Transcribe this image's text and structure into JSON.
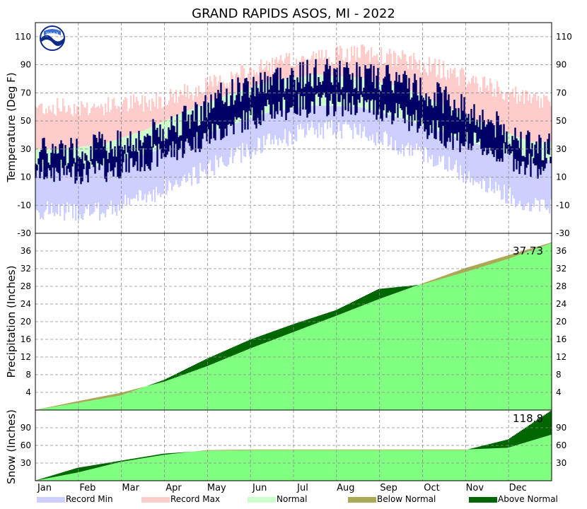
{
  "chart_data": {
    "type": "area",
    "title": "GRAND RAPIDS ASOS, MI - 2022",
    "months": [
      "Jan",
      "Feb",
      "Mar",
      "Apr",
      "May",
      "Jun",
      "Jul",
      "Aug",
      "Sep",
      "Oct",
      "Nov",
      "Dec"
    ],
    "panels": {
      "temperature": {
        "ylabel": "Temperature (Deg F)",
        "ylim": [
          -30,
          120
        ],
        "ticks": [
          -30,
          -10,
          10,
          30,
          50,
          70,
          90,
          110
        ],
        "series": {
          "record_max": [
            60,
            60,
            63,
            70,
            80,
            90,
            95,
            98,
            94,
            86,
            74,
            64
          ],
          "record_min": [
            -14,
            -15,
            -4,
            8,
            24,
            36,
            44,
            44,
            32,
            20,
            4,
            -10
          ],
          "normal_high": [
            30,
            33,
            43,
            57,
            69,
            79,
            83,
            81,
            74,
            61,
            47,
            35
          ],
          "normal_low": [
            17,
            18,
            26,
            36,
            47,
            57,
            61,
            60,
            52,
            41,
            31,
            22
          ],
          "observed_high": [
            28,
            32,
            38,
            52,
            70,
            80,
            84,
            82,
            78,
            66,
            50,
            32
          ],
          "observed_low": [
            14,
            14,
            22,
            32,
            46,
            58,
            62,
            62,
            54,
            40,
            30,
            18
          ]
        },
        "grid": true
      },
      "precipitation": {
        "ylabel": "Precipitation (Inches)",
        "ylim": [
          0,
          40
        ],
        "ticks": [
          4,
          8,
          12,
          16,
          20,
          24,
          28,
          32,
          36
        ],
        "normal_cum": [
          0,
          2.0,
          3.9,
          6.4,
          9.9,
          13.9,
          17.6,
          21.3,
          25.1,
          28.6,
          32.1,
          35.0,
          37.9
        ],
        "observed_cum": [
          0,
          1.6,
          3.3,
          6.8,
          11.6,
          15.9,
          19.4,
          22.6,
          27.4,
          28.4,
          31.2,
          34.2,
          37.73
        ],
        "total_label": "37.73",
        "grid": true
      },
      "snow": {
        "ylabel": "Snow (Inches)",
        "ylim": [
          0,
          120
        ],
        "ticks": [
          30,
          60,
          90
        ],
        "normal_cum": [
          0,
          14,
          32,
          44,
          52,
          53,
          53,
          53,
          53,
          53,
          53,
          56,
          78
        ],
        "observed_cum": [
          0,
          22,
          34,
          46,
          51,
          52,
          52,
          52,
          52,
          52,
          52,
          70,
          118.8
        ],
        "total_label": "118.8",
        "grid": true
      }
    },
    "legend": [
      {
        "label": "Record Min",
        "color": "#cccfff"
      },
      {
        "label": "Record Max",
        "color": "#ffcccc"
      },
      {
        "label": "Normal",
        "color": "#ccffcc"
      },
      {
        "label": "Below Normal",
        "color": "#aaaa55"
      },
      {
        "label": "Above Normal",
        "color": "#006600"
      }
    ],
    "colors": {
      "record_min": "#cccfff",
      "record_max": "#ffcccc",
      "normal": "#ccffcc",
      "observed": "#000066",
      "normal_precip": "#80ff80",
      "below_normal": "#aaaa55",
      "above_normal": "#006600"
    }
  }
}
